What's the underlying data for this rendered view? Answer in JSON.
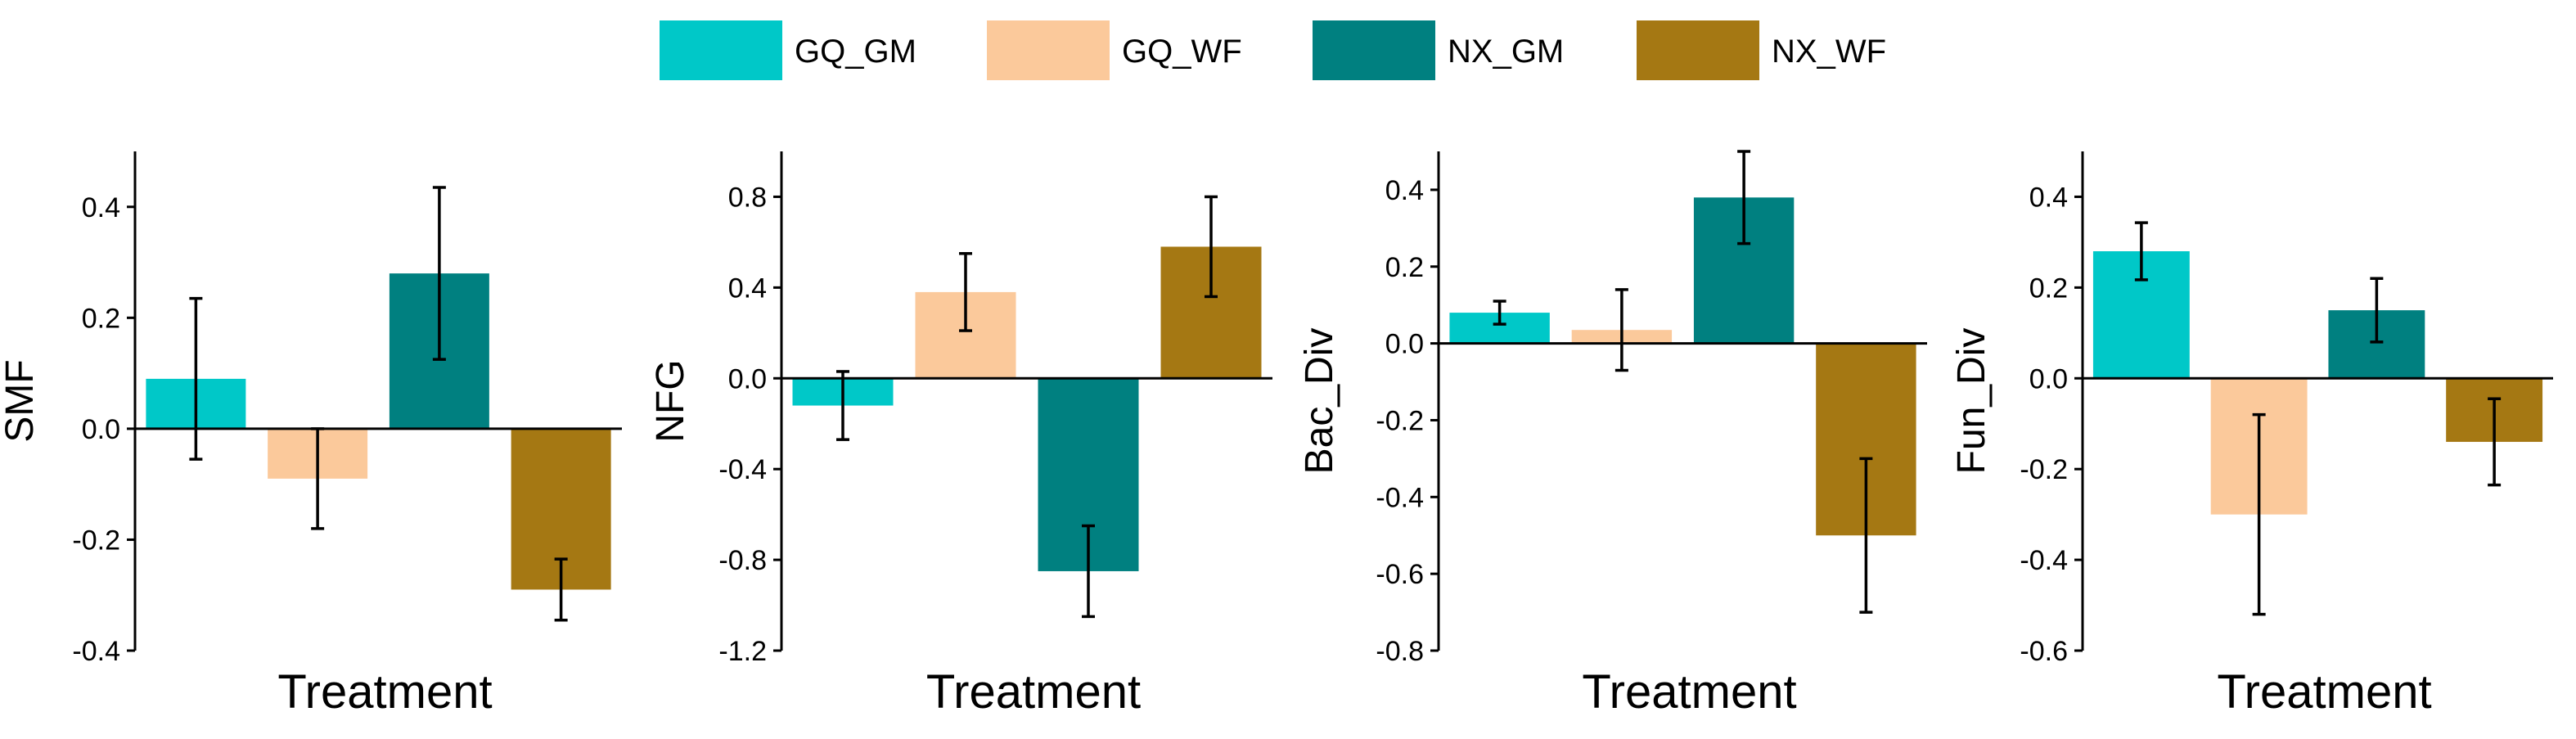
{
  "legend": {
    "entries": [
      {
        "name": "GQ_GM",
        "color": "#00c8c8"
      },
      {
        "name": "GQ_WF",
        "color": "#fbc99b"
      },
      {
        "name": "NX_GM",
        "color": "#008080"
      },
      {
        "name": "NX_WF",
        "color": "#a57813"
      }
    ]
  },
  "chart_data": [
    {
      "type": "bar",
      "ylabel": "SMF",
      "xlabel": "Treatment",
      "ylim": [
        -0.4,
        0.5
      ],
      "ticks": [
        -0.4,
        -0.2,
        0.0,
        0.2,
        0.4
      ],
      "tick_labels": [
        "-0.4",
        "-0.2",
        "0.0",
        "0.2",
        "0.4"
      ],
      "categories": [
        "GQ_GM",
        "GQ_WF",
        "NX_GM",
        "NX_WF"
      ],
      "values": [
        0.09,
        -0.09,
        0.28,
        -0.29
      ],
      "errors": [
        0.145,
        0.09,
        0.155,
        0.055
      ]
    },
    {
      "type": "bar",
      "ylabel": "NFG",
      "xlabel": "Treatment",
      "ylim": [
        -1.2,
        1.0
      ],
      "ticks": [
        -1.2,
        -0.8,
        -0.4,
        0.0,
        0.4,
        0.8
      ],
      "tick_labels": [
        "-1.2",
        "-0.8",
        "-0.4",
        "0.0",
        "0.4",
        "0.8"
      ],
      "categories": [
        "GQ_GM",
        "GQ_WF",
        "NX_GM",
        "NX_WF"
      ],
      "values": [
        -0.12,
        0.38,
        -0.85,
        0.58
      ],
      "errors": [
        0.15,
        0.17,
        0.2,
        0.22
      ]
    },
    {
      "type": "bar",
      "ylabel": "Bac_Div",
      "xlabel": "Treatment",
      "ylim": [
        -0.8,
        0.5
      ],
      "ticks": [
        -0.8,
        -0.6,
        -0.4,
        -0.2,
        0.0,
        0.2,
        0.4
      ],
      "tick_labels": [
        "-0.8",
        "-0.6",
        "-0.4",
        "-0.2",
        "0.0",
        "0.2",
        "0.4"
      ],
      "categories": [
        "GQ_GM",
        "GQ_WF",
        "NX_GM",
        "NX_WF"
      ],
      "values": [
        0.08,
        0.035,
        0.38,
        -0.5
      ],
      "errors": [
        0.03,
        0.105,
        0.12,
        0.2
      ]
    },
    {
      "type": "bar",
      "ylabel": "Fun_Div",
      "xlabel": "Treatment",
      "ylim": [
        -0.6,
        0.5
      ],
      "ticks": [
        -0.6,
        -0.4,
        -0.2,
        0.0,
        0.2,
        0.4
      ],
      "tick_labels": [
        "-0.6",
        "-0.4",
        "-0.2",
        "0.0",
        "0.2",
        "0.4"
      ],
      "categories": [
        "GQ_GM",
        "GQ_WF",
        "NX_GM",
        "NX_WF"
      ],
      "values": [
        0.28,
        -0.3,
        0.15,
        -0.14
      ],
      "errors": [
        0.063,
        0.22,
        0.07,
        0.095
      ]
    }
  ]
}
